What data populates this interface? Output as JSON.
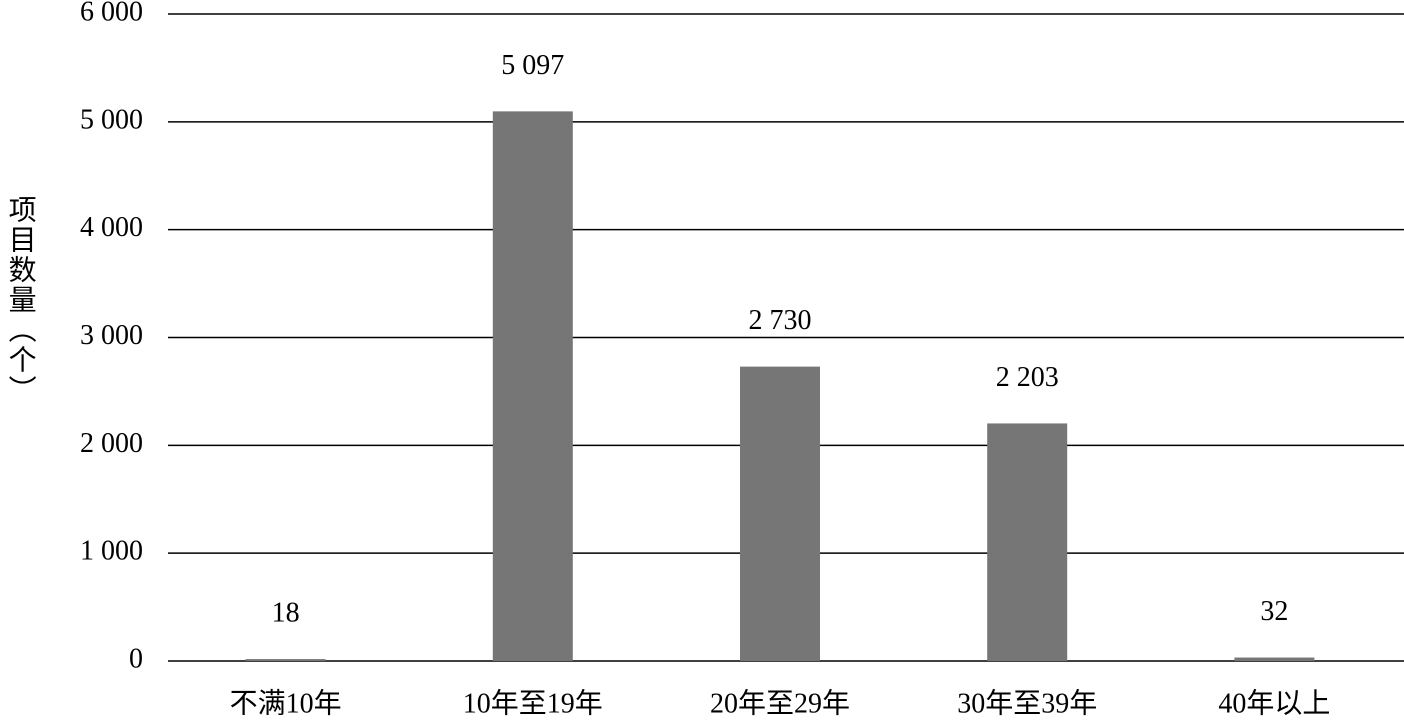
{
  "chart_data": {
    "type": "bar",
    "y_label": "项目数量（个）",
    "categories": [
      "不满10年",
      "10年至19年",
      "20年至29年",
      "30年至39年",
      "40年以上"
    ],
    "values": [
      18,
      5097,
      2730,
      2203,
      32
    ],
    "value_labels": [
      "18",
      "5 097",
      "2 730",
      "2 203",
      "32"
    ],
    "color": "#767676",
    "ylim": [
      0,
      6000
    ],
    "yticks": [
      0,
      {
        "value": 1000,
        "label": "1 000"
      },
      {
        "value": 2000,
        "label": "2 000"
      },
      {
        "value": 3000,
        "label": "3 000"
      },
      {
        "value": 4000,
        "label": "4 000"
      },
      {
        "value": 5000,
        "label": "5 000"
      },
      {
        "value": 6000,
        "label": "6 000"
      }
    ],
    "grid": true
  }
}
